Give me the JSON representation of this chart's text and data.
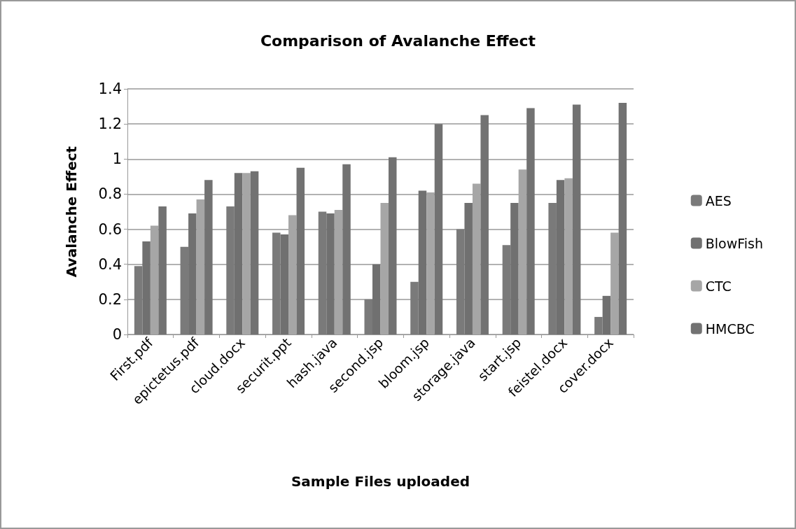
{
  "chart_data": {
    "type": "bar",
    "title": "Comparison of Avalanche Effect",
    "xlabel": "Sample Files uploaded",
    "ylabel": "Avalanche Effect",
    "categories": [
      "First.pdf",
      "epictetus.pdf",
      "cloud.docx",
      "securit.ppt",
      "hash.java",
      "second.jsp",
      "bloom.jsp",
      "storage.java",
      "start.jsp",
      "feistel.docx",
      "cover.docx"
    ],
    "series": [
      {
        "name": "AES",
        "color": "#7a7a7a",
        "values": [
          0.39,
          0.5,
          0.73,
          0.58,
          0.7,
          0.2,
          0.3,
          0.6,
          0.51,
          0.75,
          0.1
        ]
      },
      {
        "name": "BlowFish",
        "color": "#707070",
        "values": [
          0.53,
          0.69,
          0.92,
          0.57,
          0.69,
          0.4,
          0.82,
          0.75,
          0.75,
          0.88,
          0.22
        ]
      },
      {
        "name": "CTC",
        "color": "#a6a6a6",
        "values": [
          0.62,
          0.77,
          0.92,
          0.68,
          0.71,
          0.75,
          0.81,
          0.86,
          0.94,
          0.89,
          0.58
        ]
      },
      {
        "name": "HMCBC",
        "color": "#727272",
        "values": [
          0.73,
          0.88,
          0.93,
          0.95,
          0.97,
          1.01,
          1.2,
          1.25,
          1.29,
          1.31,
          1.32
        ]
      }
    ],
    "ylim": [
      0,
      1.4
    ],
    "yticks": [
      0,
      0.2,
      0.4,
      0.6,
      0.8,
      1,
      1.2,
      1.4
    ],
    "grid": "y",
    "legend": "right"
  }
}
